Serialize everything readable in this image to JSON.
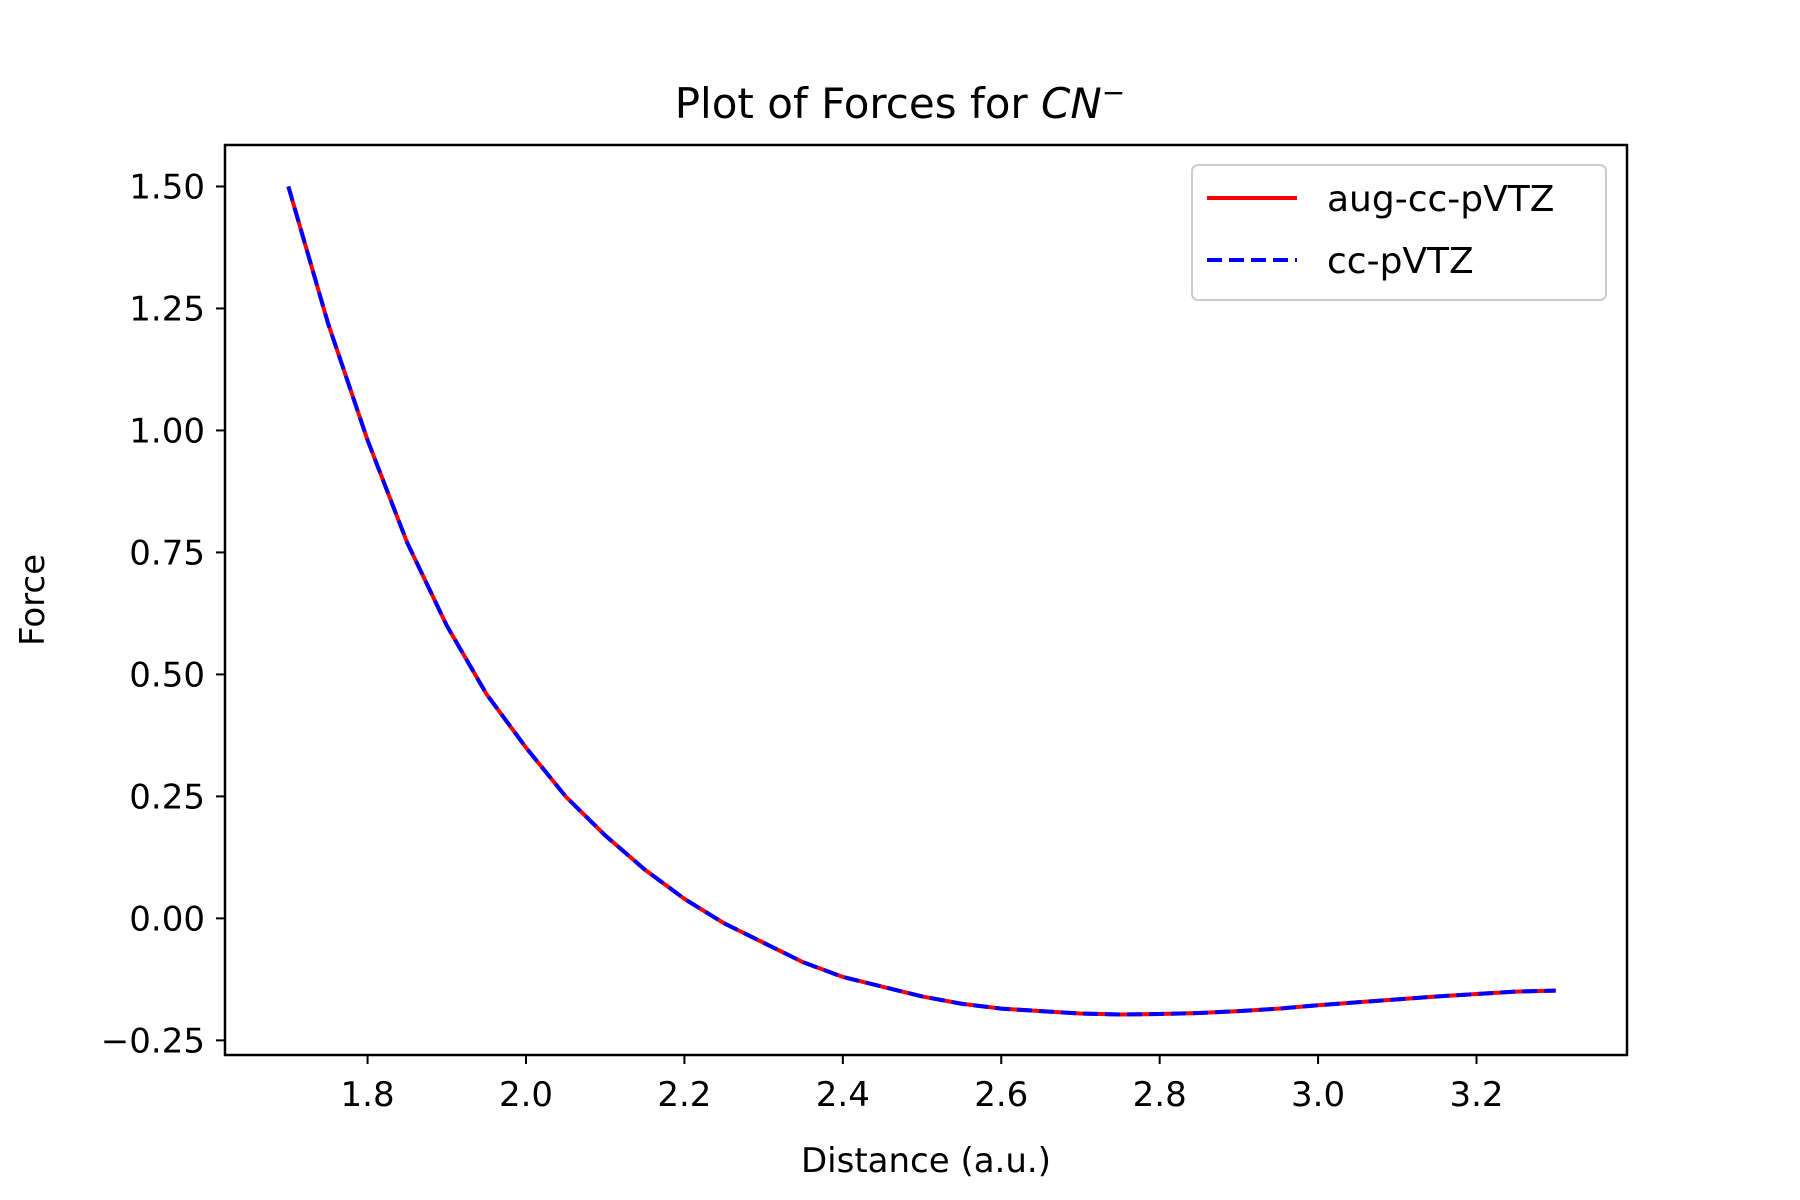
{
  "chart_data": {
    "type": "line",
    "title": "Plot of Forces for ",
    "title_math": "CN",
    "title_sup": "−",
    "xlabel": "Distance (a.u.)",
    "ylabel": "Force",
    "xlim": [
      1.62,
      3.39
    ],
    "ylim": [
      -0.28,
      1.585
    ],
    "xticks": [
      1.8,
      2.0,
      2.2,
      2.4,
      2.6,
      2.8,
      3.0,
      3.2
    ],
    "xtick_labels": [
      "1.8",
      "2.0",
      "2.2",
      "2.4",
      "2.6",
      "2.8",
      "3.0",
      "3.2"
    ],
    "yticks": [
      1.5,
      1.25,
      1.0,
      0.75,
      0.5,
      0.25,
      0.0,
      -0.25
    ],
    "ytick_labels": [
      "1.50",
      "1.25",
      "1.00",
      "0.75",
      "0.50",
      "0.25",
      "0.00",
      "−0.25"
    ],
    "grid": false,
    "legend_position": "top-right",
    "x": [
      1.7,
      1.75,
      1.8,
      1.85,
      1.9,
      1.95,
      2.0,
      2.05,
      2.1,
      2.15,
      2.2,
      2.25,
      2.3,
      2.35,
      2.4,
      2.45,
      2.5,
      2.55,
      2.6,
      2.65,
      2.7,
      2.75,
      2.8,
      2.85,
      2.9,
      2.95,
      3.0,
      3.05,
      3.1,
      3.15,
      3.2,
      3.25,
      3.3
    ],
    "series": [
      {
        "name": "aug-cc-pVTZ",
        "color": "#ff0000",
        "style": "solid",
        "values": [
          1.5,
          1.22,
          0.98,
          0.77,
          0.6,
          0.46,
          0.35,
          0.25,
          0.17,
          0.1,
          0.04,
          -0.01,
          -0.05,
          -0.09,
          -0.12,
          -0.14,
          -0.16,
          -0.175,
          -0.185,
          -0.19,
          -0.195,
          -0.197,
          -0.196,
          -0.194,
          -0.19,
          -0.185,
          -0.178,
          -0.172,
          -0.166,
          -0.16,
          -0.155,
          -0.15,
          -0.148
        ]
      },
      {
        "name": "cc-pVTZ",
        "color": "#0000ff",
        "style": "dashed",
        "values": [
          1.5,
          1.22,
          0.98,
          0.77,
          0.6,
          0.46,
          0.35,
          0.25,
          0.17,
          0.1,
          0.04,
          -0.01,
          -0.05,
          -0.09,
          -0.12,
          -0.14,
          -0.16,
          -0.175,
          -0.185,
          -0.19,
          -0.195,
          -0.197,
          -0.196,
          -0.194,
          -0.19,
          -0.185,
          -0.178,
          -0.172,
          -0.166,
          -0.16,
          -0.155,
          -0.15,
          -0.148
        ]
      }
    ]
  }
}
